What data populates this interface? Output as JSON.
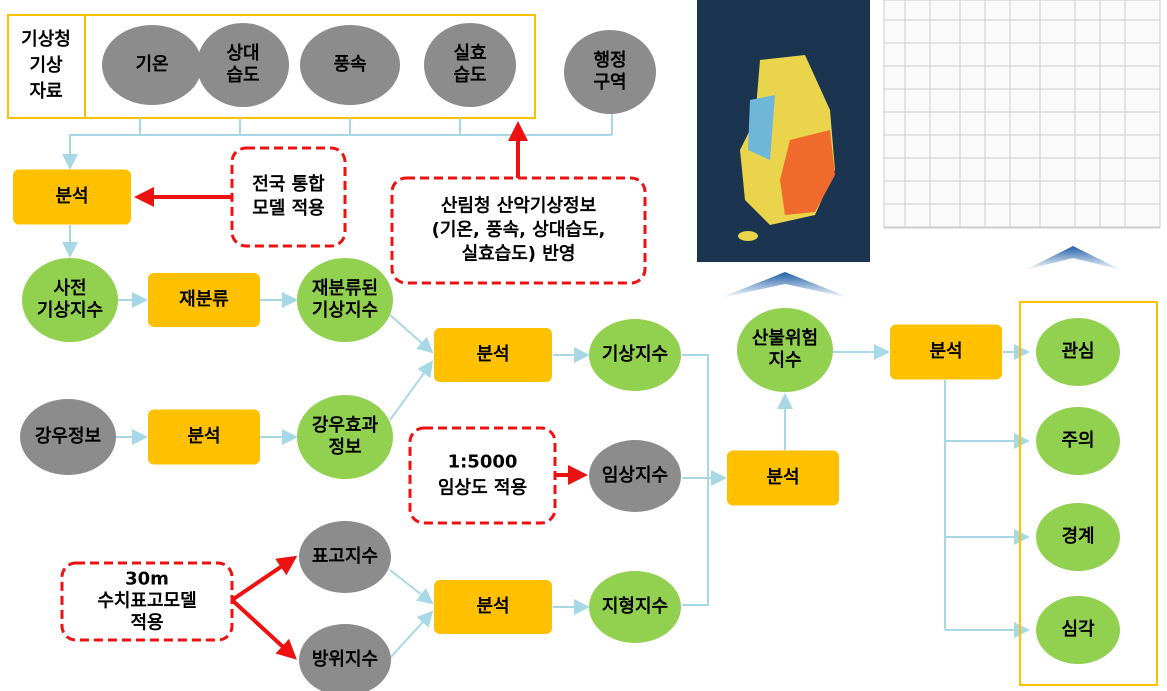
{
  "source_box": {
    "lines": [
      "기상청",
      "기상",
      "자료"
    ]
  },
  "nodes": [
    {
      "lines": [
        "기온"
      ]
    },
    {
      "lines": [
        "상대",
        "습도"
      ]
    },
    {
      "lines": [
        "풍속"
      ]
    },
    {
      "lines": [
        "실효",
        "습도"
      ]
    },
    {
      "lines": [
        "행정",
        "구역"
      ]
    },
    {
      "lines": [
        "분석"
      ]
    },
    {
      "lines": [
        "사전",
        "기상지수"
      ]
    },
    {
      "lines": [
        "재분류"
      ]
    },
    {
      "lines": [
        "재분류된",
        "기상지수"
      ]
    },
    {
      "lines": [
        "강우정보"
      ]
    },
    {
      "lines": [
        "분석"
      ]
    },
    {
      "lines": [
        "강우효과",
        "정보"
      ]
    },
    {
      "lines": [
        "표고지수"
      ]
    },
    {
      "lines": [
        "방위지수"
      ]
    },
    {
      "lines": [
        "분석"
      ]
    },
    {
      "lines": [
        "기상지수"
      ]
    },
    {
      "lines": [
        "임상지수"
      ]
    },
    {
      "lines": [
        "분석"
      ]
    },
    {
      "lines": [
        "지형지수"
      ]
    },
    {
      "lines": [
        "분석"
      ]
    },
    {
      "lines": [
        "산불위험",
        "지수"
      ]
    },
    {
      "lines": [
        "분석"
      ]
    },
    {
      "lines": [
        "관심"
      ]
    },
    {
      "lines": [
        "주의"
      ]
    },
    {
      "lines": [
        "경계"
      ]
    },
    {
      "lines": [
        "심각"
      ]
    }
  ],
  "notes": [
    {
      "lines": [
        "전국 통합",
        "모델 적용"
      ]
    },
    {
      "lines": [
        "산림청 산악기상정보",
        "(기온, 풍속, 상대습도,",
        "실효습도) 반영"
      ]
    },
    {
      "lines": [
        "1:5000",
        "임상도 적용"
      ]
    },
    {
      "lines": [
        "30m",
        "수치표고모델",
        "적용"
      ]
    }
  ]
}
